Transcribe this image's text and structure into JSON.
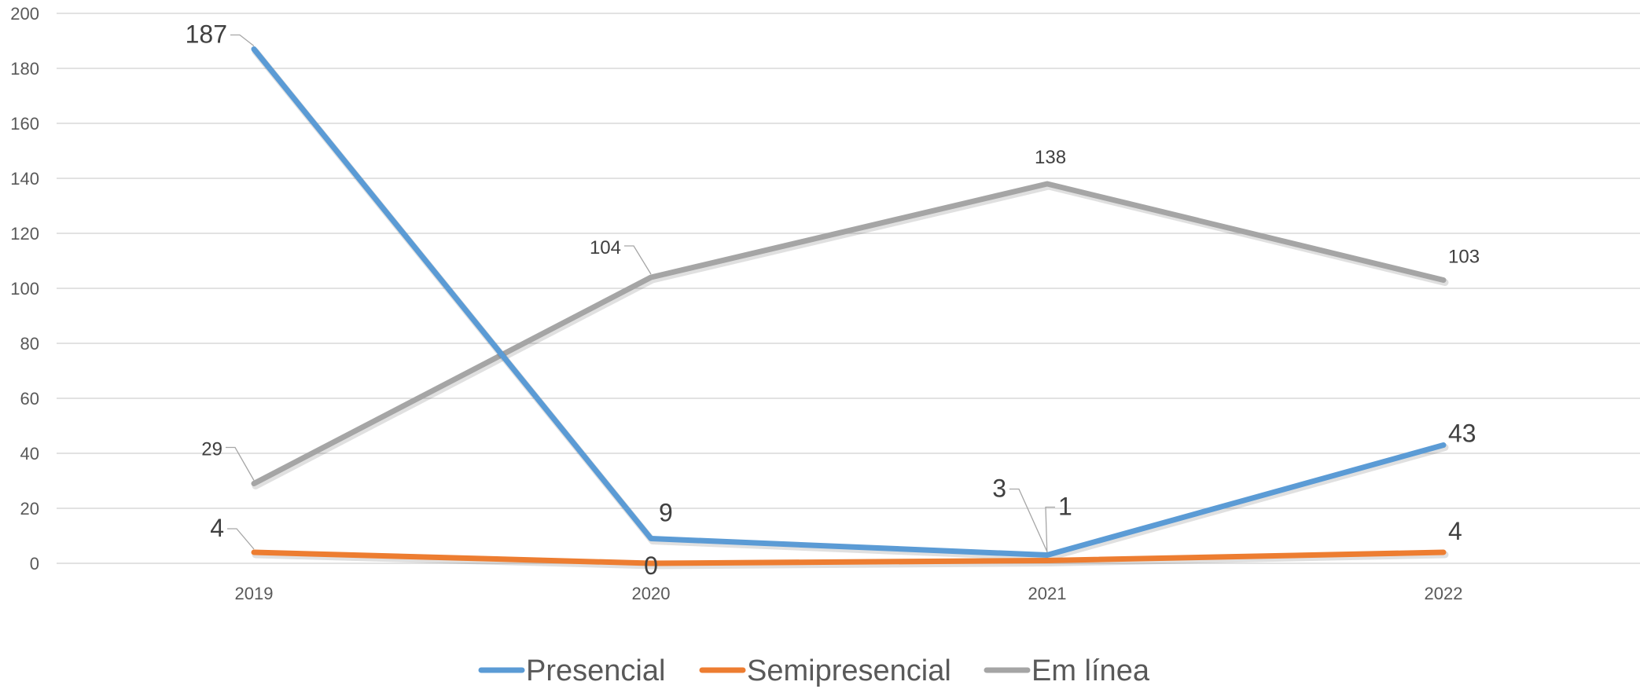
{
  "chart_data": {
    "type": "line",
    "categories": [
      "2019",
      "2020",
      "2021",
      "2022"
    ],
    "ylim": [
      0,
      200
    ],
    "yticks": [
      0,
      20,
      40,
      60,
      80,
      100,
      120,
      140,
      160,
      180,
      200
    ],
    "grid": true,
    "legend_position": "bottom",
    "series": [
      {
        "name": "Presencial",
        "values": [
          187,
          9,
          3,
          43
        ],
        "color": "#5B9BD5",
        "labels": [
          "187",
          "9",
          "3",
          "43"
        ]
      },
      {
        "name": "Semipresencial",
        "values": [
          4,
          0,
          1,
          4
        ],
        "color": "#ED7D31",
        "labels": [
          "4",
          "0",
          "1",
          "4"
        ]
      },
      {
        "name": "Em línea",
        "values": [
          29,
          104,
          138,
          103
        ],
        "color": "#A5A5A5",
        "labels": [
          "29",
          "104",
          "138",
          "103"
        ]
      }
    ]
  }
}
